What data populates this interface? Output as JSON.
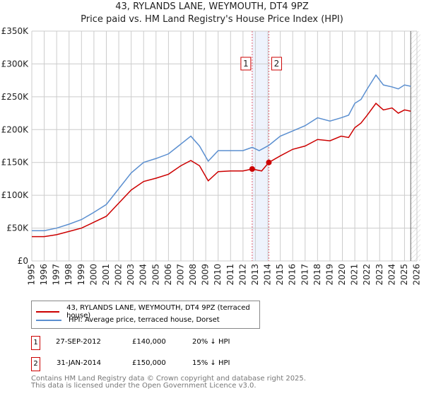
{
  "chart_data": {
    "type": "line",
    "title": "43, RYLANDS LANE, WEYMOUTH, DT4 9PZ",
    "subtitle": "Price paid vs. HM Land Registry's House Price Index (HPI)",
    "xlim": [
      1995,
      2026
    ],
    "ylim": [
      0,
      350000
    ],
    "x_ticks": [
      "1995",
      "1996",
      "1997",
      "1998",
      "1999",
      "2000",
      "2001",
      "2002",
      "2003",
      "2004",
      "2005",
      "2006",
      "2007",
      "2008",
      "2009",
      "2010",
      "2011",
      "2012",
      "2013",
      "2014",
      "2015",
      "2016",
      "2017",
      "2018",
      "2019",
      "2020",
      "2021",
      "2022",
      "2023",
      "2024",
      "2025",
      "2026"
    ],
    "y_ticks": [
      {
        "v": 0,
        "label": "£0"
      },
      {
        "v": 50000,
        "label": "£50K"
      },
      {
        "v": 100000,
        "label": "£100K"
      },
      {
        "v": 150000,
        "label": "£150K"
      },
      {
        "v": 200000,
        "label": "£200K"
      },
      {
        "v": 250000,
        "label": "£250K"
      },
      {
        "v": 300000,
        "label": "£300K"
      },
      {
        "v": 350000,
        "label": "£350K"
      }
    ],
    "grid": true,
    "series": [
      {
        "name": "43, RYLANDS LANE, WEYMOUTH, DT4 9PZ (terraced house)",
        "color": "#cc0000",
        "x": [
          1995,
          1996,
          1997,
          1998,
          1999,
          2000,
          2001,
          2002,
          2003,
          2004,
          2005,
          2006,
          2007,
          2007.8,
          2008.5,
          2009.2,
          2010,
          2011,
          2012,
          2012.74,
          2013.5,
          2014.08,
          2015,
          2016,
          2017,
          2018,
          2019,
          2019.9,
          2020.5,
          2021,
          2021.5,
          2022,
          2022.7,
          2023.3,
          2024,
          2024.5,
          2025,
          2025.5
        ],
        "y": [
          37000,
          37000,
          40000,
          45000,
          50000,
          59000,
          68000,
          88000,
          108000,
          121000,
          126000,
          132000,
          145000,
          153000,
          145000,
          122000,
          136000,
          137000,
          137000,
          140000,
          137000,
          150000,
          160000,
          170000,
          175000,
          185000,
          183000,
          190000,
          188000,
          203000,
          210000,
          222000,
          240000,
          230000,
          233000,
          225000,
          230000,
          228000
        ]
      },
      {
        "name": "HPI: Average price, terraced house, Dorset",
        "color": "#5b8fd0",
        "x": [
          1995,
          1996,
          1997,
          1998,
          1999,
          2000,
          2001,
          2002,
          2003,
          2004,
          2005,
          2006,
          2007,
          2007.8,
          2008.5,
          2009.2,
          2010,
          2011,
          2012,
          2012.74,
          2013.3,
          2014.08,
          2015,
          2016,
          2017,
          2018,
          2019,
          2019.9,
          2020.5,
          2021,
          2021.5,
          2022,
          2022.7,
          2023.3,
          2024,
          2024.5,
          2025,
          2025.5
        ],
        "y": [
          46000,
          46000,
          50000,
          56000,
          63000,
          74000,
          86000,
          110000,
          134000,
          150000,
          156000,
          163000,
          178000,
          190000,
          175000,
          152000,
          168000,
          168000,
          168000,
          173000,
          168000,
          176000,
          190000,
          198000,
          206000,
          218000,
          213000,
          218000,
          222000,
          240000,
          246000,
          262000,
          283000,
          268000,
          265000,
          262000,
          268000,
          266000
        ]
      }
    ],
    "annotations": [
      {
        "label": "1",
        "x": 2012.74,
        "y": 140000
      },
      {
        "label": "2",
        "x": 2014.08,
        "y": 150000
      }
    ],
    "legend_placement": "bottom"
  },
  "transactions": [
    {
      "num": "1",
      "date": "27-SEP-2012",
      "price": "£140,000",
      "delta": "20% ↓ HPI"
    },
    {
      "num": "2",
      "date": "31-JAN-2014",
      "price": "£150,000",
      "delta": "15% ↓ HPI"
    }
  ],
  "footer": {
    "line1": "Contains HM Land Registry data © Crown copyright and database right 2025.",
    "line2": "This data is licensed under the Open Government Licence v3.0."
  }
}
